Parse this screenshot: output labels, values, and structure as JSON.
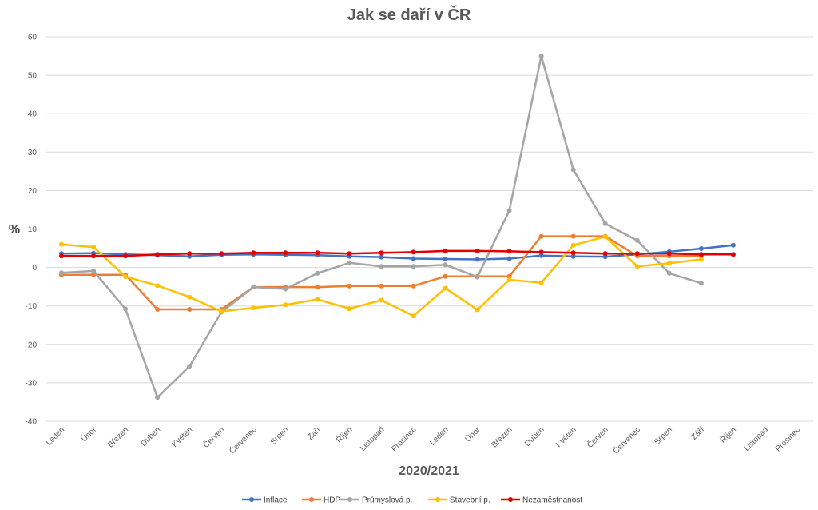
{
  "chart_data": {
    "type": "line",
    "title": "Jak se daří v ČR",
    "xlabel": "2020/2021",
    "ylabel": "%",
    "ylim": [
      -40,
      60
    ],
    "yticks": [
      60,
      50,
      40,
      30,
      20,
      10,
      0,
      -10,
      -20,
      -30,
      -40
    ],
    "grid": true,
    "legend_position": "bottom",
    "categories": [
      "Leden",
      "Únor",
      "Březen",
      "Duben",
      "Květen",
      "Červen",
      "Červenec",
      "Srpen",
      "Září",
      "Říjen",
      "Listopad",
      "Prosinec",
      "Leden",
      "Únor",
      "Březen",
      "Duben",
      "Květen",
      "Červen",
      "Červenec",
      "Srpen",
      "Září",
      "Říjen",
      "Listopad",
      "Prosinec"
    ],
    "series": [
      {
        "name": "Inflace",
        "color": "#4472C4",
        "values": [
          3.6,
          3.7,
          3.4,
          3.2,
          2.9,
          3.3,
          3.4,
          3.3,
          3.2,
          2.9,
          2.7,
          2.3,
          2.2,
          2.1,
          2.3,
          3.1,
          2.9,
          2.8,
          3.4,
          4.1,
          4.9,
          5.8,
          null,
          null
        ]
      },
      {
        "name": "HDP",
        "color": "#ED7D31",
        "values": [
          -1.9,
          -1.9,
          -1.9,
          -10.9,
          -10.9,
          -10.9,
          -5.1,
          -5.1,
          -5.1,
          -4.8,
          -4.8,
          -4.8,
          -2.3,
          -2.3,
          -2.3,
          8.1,
          8.1,
          8.1,
          3.0,
          3.0,
          3.0,
          null,
          null,
          null
        ]
      },
      {
        "name": "Průmyslová p.",
        "color": "#A5A5A5",
        "values": [
          -1.4,
          -0.9,
          -10.8,
          -33.8,
          -25.7,
          -11.6,
          -5.1,
          -5.6,
          -1.5,
          1.2,
          0.3,
          0.3,
          0.7,
          -2.5,
          14.8,
          55.0,
          25.4,
          11.4,
          7.0,
          -1.5,
          -4.1,
          null,
          null,
          null
        ]
      },
      {
        "name": "Stavební p.",
        "color": "#FFC000",
        "values": [
          6.0,
          5.3,
          -2.4,
          -4.7,
          -7.7,
          -11.4,
          -10.5,
          -9.7,
          -8.3,
          -10.7,
          -8.5,
          -12.6,
          -5.4,
          -11.0,
          -3.2,
          -4.0,
          5.8,
          8.0,
          0.3,
          1.1,
          2.1,
          null,
          null,
          null
        ]
      },
      {
        "name": "Nezaměstnanost",
        "color": "#E30000",
        "values": [
          3.0,
          3.0,
          3.0,
          3.4,
          3.6,
          3.6,
          3.8,
          3.8,
          3.8,
          3.6,
          3.8,
          4.0,
          4.3,
          4.3,
          4.2,
          4.0,
          3.8,
          3.6,
          3.6,
          3.6,
          3.4,
          3.4,
          null,
          null
        ]
      }
    ]
  }
}
